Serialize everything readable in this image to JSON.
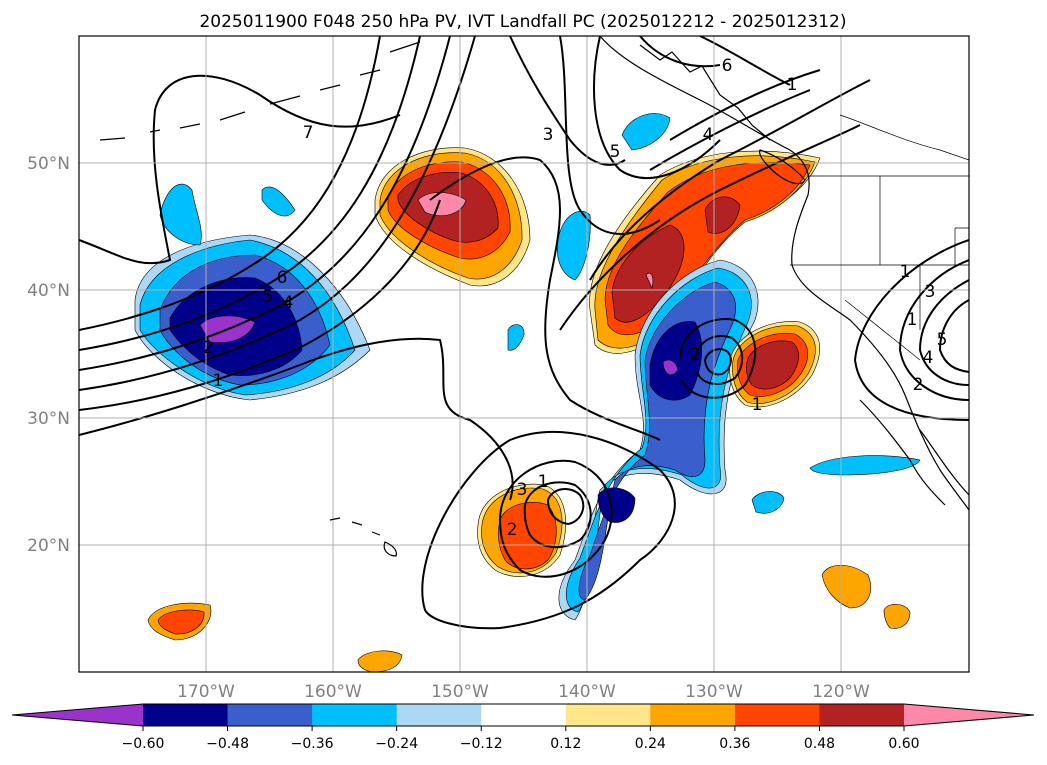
{
  "title": "2025011900 F048 250 hPa PV, IVT Landfall PC (2025012212 - 2025012312)",
  "map": {
    "lon_labels": [
      "170°W",
      "160°W",
      "150°W",
      "140°W",
      "130°W",
      "120°W"
    ],
    "lat_labels": [
      "50°N",
      "40°N",
      "30°N",
      "20°N"
    ],
    "gridline_color": "#b0b0b0",
    "coastline_color": "#000000",
    "contour_labels": [
      {
        "text": "7"
      },
      {
        "text": "3"
      },
      {
        "text": "6"
      },
      {
        "text": "5"
      },
      {
        "text": "4"
      },
      {
        "text": "1"
      },
      {
        "text": "6"
      },
      {
        "text": "5"
      },
      {
        "text": "4"
      },
      {
        "text": "2"
      },
      {
        "text": "1"
      },
      {
        "text": "1"
      },
      {
        "text": "2"
      },
      {
        "text": "1"
      },
      {
        "text": "3"
      },
      {
        "text": "2"
      },
      {
        "text": "1"
      },
      {
        "text": "1"
      },
      {
        "text": "3"
      },
      {
        "text": "5"
      },
      {
        "text": "4"
      },
      {
        "text": "2"
      }
    ]
  },
  "colorbar": {
    "tick_labels": [
      "−0.60",
      "−0.48",
      "−0.36",
      "−0.24",
      "−0.12",
      "0.12",
      "0.24",
      "0.36",
      "0.48",
      "0.60"
    ],
    "colors": [
      "#9933cc",
      "#00008b",
      "#3a5fcd",
      "#00bfff",
      "#add8f5",
      "#ffffff",
      "#ffe68a",
      "#ffa500",
      "#ff4500",
      "#b22222",
      "#ff88aa"
    ]
  }
}
